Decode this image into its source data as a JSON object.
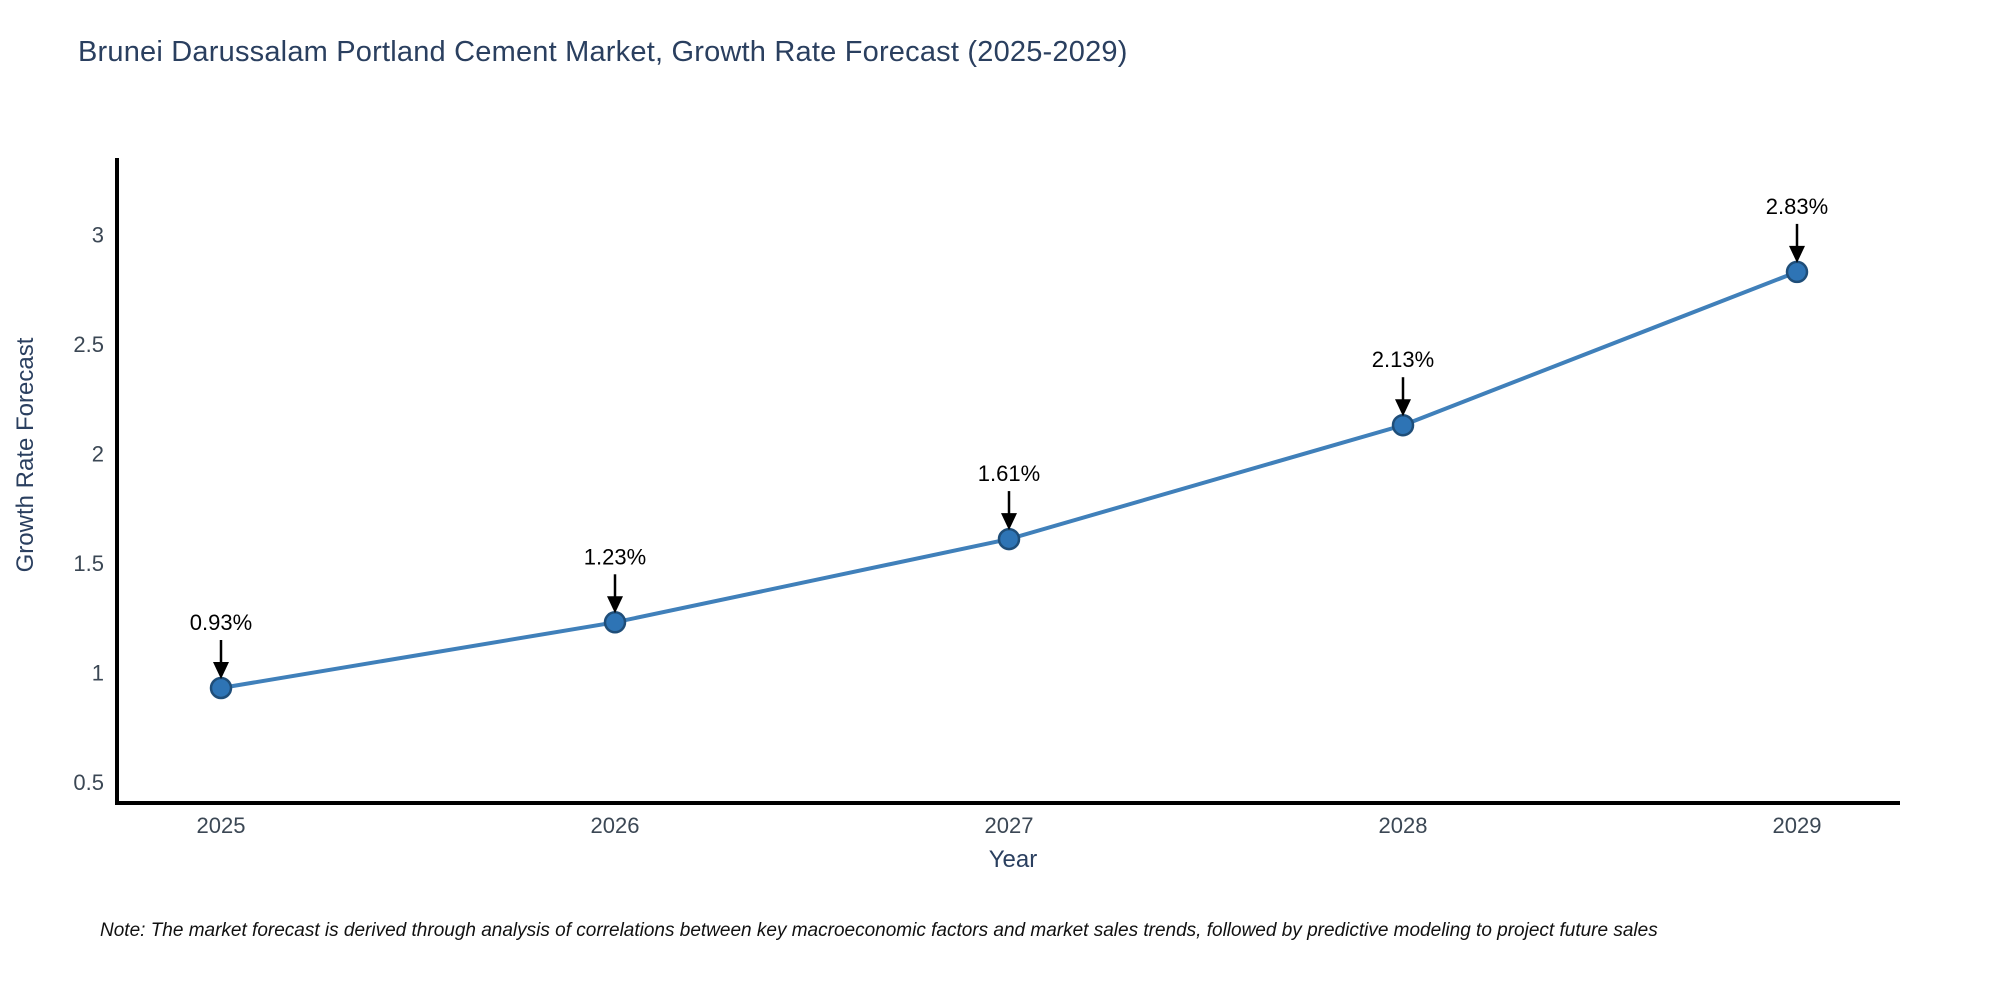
{
  "title": "Brunei Darussalam Portland Cement Market, Growth Rate Forecast (2025-2029)",
  "note": "Note: The market forecast is derived through analysis of correlations between key macroeconomic factors and market sales trends, followed by predictive modeling to project future sales",
  "chart_data": {
    "type": "line",
    "x": [
      2025,
      2026,
      2027,
      2028,
      2029
    ],
    "series": [
      {
        "name": "Growth Rate Forecast",
        "values": [
          0.93,
          1.23,
          1.61,
          2.13,
          2.83
        ]
      }
    ],
    "point_labels": [
      "0.93%",
      "1.23%",
      "1.61%",
      "2.13%",
      "2.83%"
    ],
    "title": "Brunei Darussalam Portland Cement Market, Growth Rate Forecast (2025-2029)",
    "xlabel": "Year",
    "ylabel": "Growth Rate Forecast",
    "yticks": [
      0.5,
      1,
      1.5,
      2,
      2.5,
      3
    ],
    "ylim": [
      0.4,
      3.37
    ],
    "grid": false,
    "legend": "none",
    "colors": {
      "line": "#4080ba",
      "marker_fill": "#2e74b5",
      "marker_edge": "#1f4e79",
      "axis": "#000000",
      "tick_label": "#3b4754",
      "title": "#2a3f5f",
      "annotation": "#000000"
    }
  }
}
